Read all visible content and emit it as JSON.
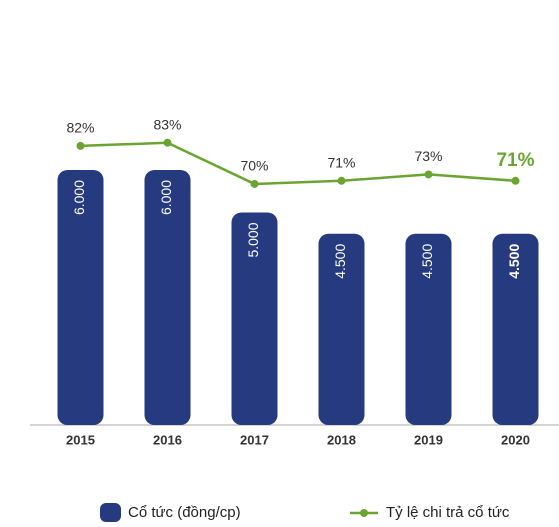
{
  "chart_data": {
    "type": "bar",
    "categories": [
      "2015",
      "2016",
      "2017",
      "2018",
      "2019",
      "2020"
    ],
    "series": [
      {
        "name": "Cổ tức (đồng/cp)",
        "type": "bar",
        "color": "#263a80",
        "values": [
          6000,
          6000,
          5000,
          4500,
          4500,
          4500
        ],
        "value_labels": [
          "6.000",
          "6.000",
          "5.000",
          "4.500",
          "4.500",
          "4.500"
        ]
      },
      {
        "name": "Tỷ lệ chi trả cổ tức",
        "type": "line",
        "axis": "y2",
        "color": "#6aa532",
        "values": [
          82,
          83,
          70,
          71,
          73,
          71
        ],
        "value_labels": [
          "82%",
          "83%",
          "70%",
          "71%",
          "73%",
          "71%"
        ]
      }
    ],
    "ylim": [
      0,
      10000
    ],
    "y2lim": [
      -6,
      128
    ]
  }
}
